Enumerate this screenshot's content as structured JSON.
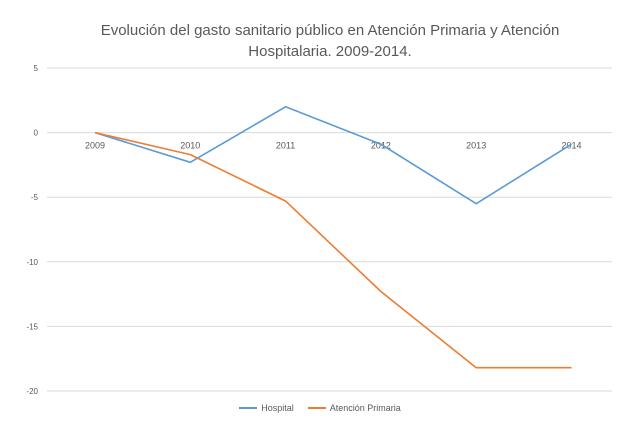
{
  "chart_data": {
    "type": "line",
    "title": "Evolución del gasto sanitario público en Atención Primaria y Atención Hospitalaria. 2009-2014.",
    "title_lines": [
      "Evolución del gasto sanitario público en Atención Primaria y Atención",
      "Hospitalaria. 2009-2014."
    ],
    "categories": [
      "2009",
      "2010",
      "2011",
      "2012",
      "2013",
      "2014"
    ],
    "series": [
      {
        "name": "Hospital",
        "color": "#5b9bd5",
        "values": [
          0,
          -2.3,
          2.0,
          -0.9,
          -5.5,
          -0.9
        ]
      },
      {
        "name": "Atención Primaria",
        "color": "#ed7d31",
        "values": [
          0,
          -1.7,
          -5.3,
          -12.3,
          -18.2,
          -18.2
        ]
      }
    ],
    "ylim": [
      -20,
      5
    ],
    "yticks": [
      5,
      0,
      -5,
      -10,
      -15,
      -20
    ],
    "grid": true,
    "legend_position": "bottom"
  }
}
